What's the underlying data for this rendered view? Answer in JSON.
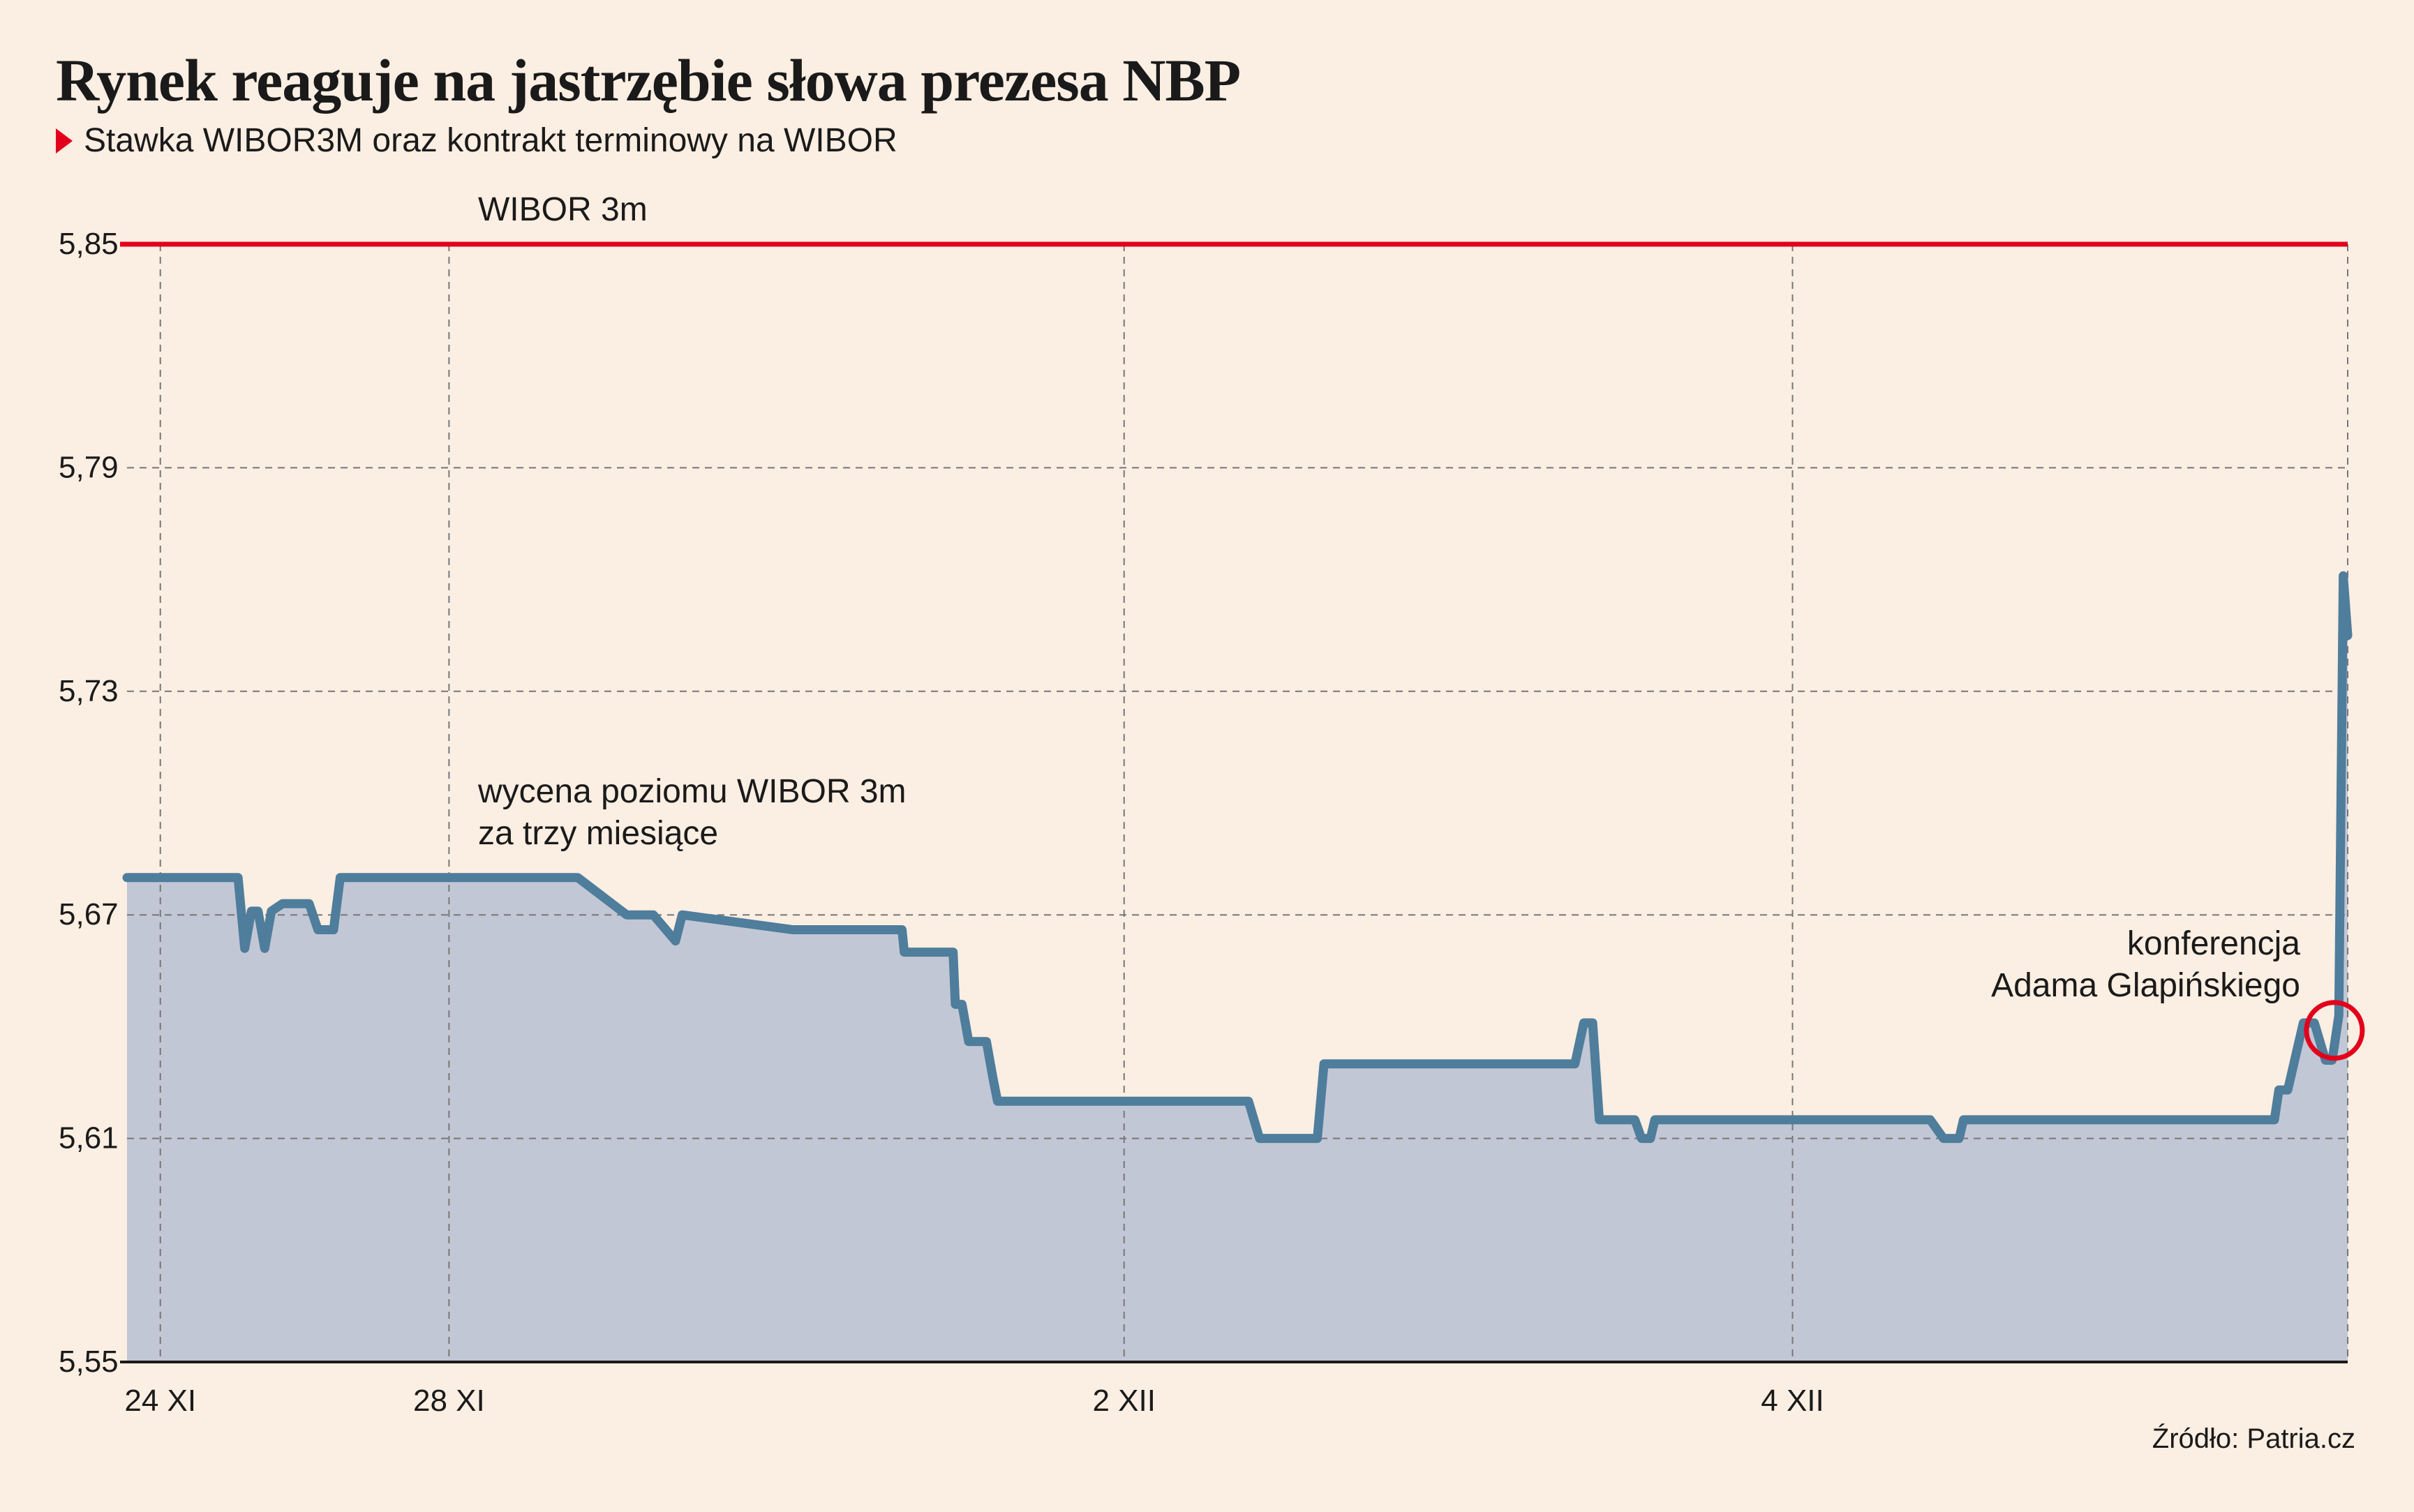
{
  "header": {
    "title": "Rynek reaguje na jastrzębie słowa prezesa NBP",
    "subtitle": "Stawka WIBOR3M oraz kontrakt terminowy na WIBOR"
  },
  "footer": {
    "source": "Źródło: Patria.cz"
  },
  "colors": {
    "background": "#fbeee2",
    "wibor_line": "#e3001b",
    "futures_line": "#4f7d9c",
    "futures_fill": "#c2c7d6",
    "highlight_circle": "#e3001b"
  },
  "chart_data": {
    "type": "line",
    "title": "Rynek reaguje na jastrzębie słowa prezesa NBP",
    "subtitle": "Stawka WIBOR3M oraz kontrakt terminowy na WIBOR",
    "ylim": [
      5.55,
      5.85
    ],
    "yticks": [
      "5,85",
      "5,79",
      "5,73",
      "5,67",
      "5,61",
      "5,55"
    ],
    "ytick_values": [
      5.85,
      5.79,
      5.73,
      5.67,
      5.61,
      5.55
    ],
    "xticks": [
      "24 XI",
      "28 XI",
      "2 XII",
      "4 XII"
    ],
    "x_index_range": [
      0,
      1000
    ],
    "xtick_positions": [
      15,
      145,
      449,
      750
    ],
    "grid": true,
    "series": [
      {
        "name": "WIBOR 3m",
        "style": "line",
        "x": [
          0,
          1000
        ],
        "values": [
          5.85,
          5.85
        ]
      },
      {
        "name": "wycena poziomu WIBOR 3m za trzy miesiące",
        "style": "area",
        "x": [
          0,
          47,
          50,
          53,
          56,
          59,
          62,
          65,
          70,
          74,
          78,
          82,
          86,
          90,
          93,
          96,
          200,
          203,
          225,
          232,
          237,
          247,
          250,
          300,
          342,
          349,
          350,
          372,
          373,
          376,
          379,
          387,
          390,
          392,
          505,
          510,
          514,
          536,
          539,
          652,
          656,
          658,
          660,
          663,
          679,
          682,
          684,
          686,
          688,
          690,
          810,
          812,
          818,
          823,
          825,
          827,
          828,
          830,
          960,
          963,
          967,
          969,
          971,
          973,
          980,
          985,
          990,
          993,
          996,
          998,
          1000
        ],
        "values": [
          5.68,
          5.68,
          5.68,
          5.661,
          5.671,
          5.671,
          5.661,
          5.671,
          5.673,
          5.673,
          5.673,
          5.673,
          5.666,
          5.666,
          5.666,
          5.68,
          5.68,
          5.68,
          5.67,
          5.67,
          5.67,
          5.663,
          5.67,
          5.666,
          5.666,
          5.666,
          5.66,
          5.66,
          5.646,
          5.646,
          5.636,
          5.636,
          5.626,
          5.62,
          5.62,
          5.61,
          5.61,
          5.61,
          5.63,
          5.63,
          5.641,
          5.641,
          5.641,
          5.615,
          5.615,
          5.61,
          5.61,
          5.61,
          5.615,
          5.615,
          5.615,
          5.615,
          5.61,
          5.61,
          5.61,
          5.615,
          5.615,
          5.615,
          5.615,
          5.615,
          5.615,
          5.623,
          5.623,
          5.623,
          5.641,
          5.641,
          5.631,
          5.631,
          5.643,
          5.761,
          5.745
        ]
      }
    ],
    "annotations": [
      {
        "text": "WIBOR 3m",
        "series": 0
      },
      {
        "text_lines": [
          "wycena poziomu WIBOR 3m",
          "za trzy miesiące"
        ],
        "series": 1
      },
      {
        "text_lines": [
          "konferencja",
          "Adama Glapińskiego"
        ],
        "highlight_x": 994,
        "highlight_y": 5.639
      }
    ]
  }
}
